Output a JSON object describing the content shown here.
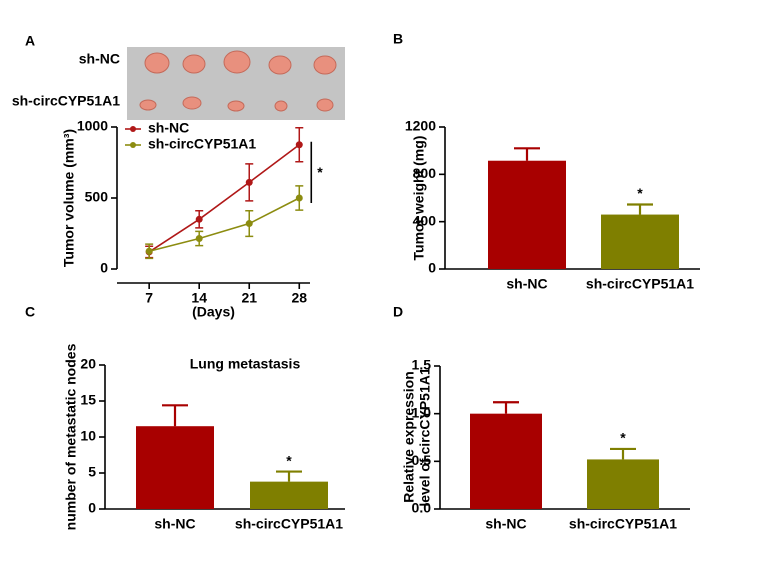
{
  "chart_data": [
    {
      "type": "line",
      "label": "A",
      "image_labels": [
        "sh-NC",
        "sh-circCYP51A1"
      ],
      "ylabel": "Tumor volume (mm³)",
      "xlabel": "(Days)",
      "x": [
        7,
        14,
        21,
        28
      ],
      "xlim": [
        2.5,
        29.5
      ],
      "xticks": [
        7,
        14,
        21,
        28
      ],
      "ylim": [
        0,
        1000
      ],
      "yticks": [
        0,
        500,
        1000
      ],
      "series": [
        {
          "name": "sh-NC",
          "color": "#b01818",
          "values": [
            120,
            350,
            610,
            875
          ],
          "errors": [
            40,
            60,
            130,
            120
          ]
        },
        {
          "name": "sh-circCYP51A1",
          "color": "#8c8c10",
          "values": [
            125,
            215,
            320,
            500
          ],
          "errors": [
            50,
            50,
            90,
            85
          ]
        }
      ],
      "annotation": "*"
    },
    {
      "type": "bar",
      "label": "B",
      "ylabel": "Tumor weight (mg)",
      "categories": [
        "sh-NC",
        "sh-circCYP51A1"
      ],
      "values": [
        915,
        460
      ],
      "errors": [
        105,
        85
      ],
      "colors": [
        "#a80000",
        "#7f7f00"
      ],
      "ylim": [
        0,
        1200
      ],
      "yticks": [
        0,
        400,
        800,
        1200
      ],
      "annotation": "*"
    },
    {
      "type": "bar",
      "label": "C",
      "title": "Lung metastasis",
      "ylabel": "number of metastatic nodes",
      "categories": [
        "sh-NC",
        "sh-circCYP51A1"
      ],
      "values": [
        11.5,
        3.8
      ],
      "errors": [
        2.9,
        1.4
      ],
      "colors": [
        "#a80000",
        "#7f7f00"
      ],
      "ylim": [
        0,
        20
      ],
      "yticks": [
        0,
        5,
        10,
        15,
        20
      ],
      "annotation": "*"
    },
    {
      "type": "bar",
      "label": "D",
      "ylabel": [
        "Relative expression",
        "level of circCYP51A1"
      ],
      "categories": [
        "sh-NC",
        "sh-circCYP51A1"
      ],
      "values": [
        1.0,
        0.52
      ],
      "errors": [
        0.12,
        0.11
      ],
      "colors": [
        "#a80000",
        "#7f7f00"
      ],
      "ylim": [
        0,
        1.5
      ],
      "yticks": [
        {
          "value": 0,
          "label": "0.0"
        },
        0.5,
        {
          "value": 1,
          "label": "1.0"
        },
        1.5
      ],
      "annotation": "*"
    }
  ]
}
